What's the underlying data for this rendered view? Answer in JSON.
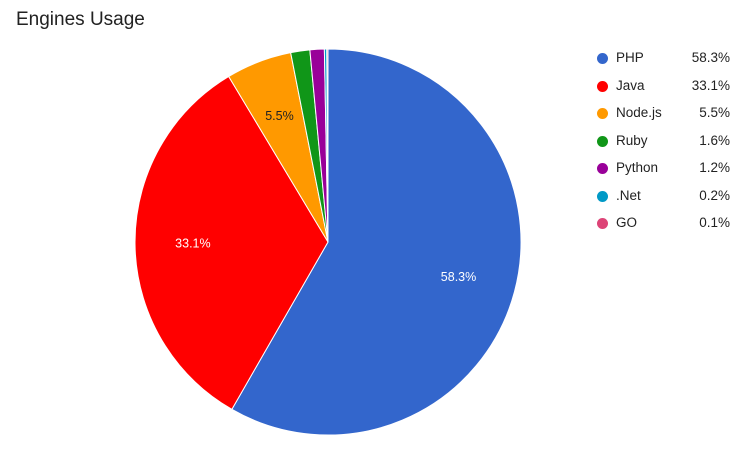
{
  "chart_data": {
    "type": "pie",
    "title": "Engines Usage",
    "legend_position": "right",
    "slices": [
      {
        "name": "PHP",
        "value": 58.3,
        "label": "58.3%",
        "color": "#3366cc",
        "text_color": "#ffffff",
        "show_label": true
      },
      {
        "name": "Java",
        "value": 33.1,
        "label": "33.1%",
        "color": "#ff0000",
        "text_color": "#ffffff",
        "show_label": true
      },
      {
        "name": "Node.js",
        "value": 5.5,
        "label": "5.5%",
        "color": "#ff9900",
        "text_color": "#222222",
        "show_label": true
      },
      {
        "name": "Ruby",
        "value": 1.6,
        "label": "1.6%",
        "color": "#109618",
        "text_color": "#ffffff",
        "show_label": false
      },
      {
        "name": "Python",
        "value": 1.2,
        "label": "1.2%",
        "color": "#990099",
        "text_color": "#ffffff",
        "show_label": false
      },
      {
        "name": ".Net",
        "value": 0.2,
        "label": "0.2%",
        "color": "#0099c6",
        "text_color": "#ffffff",
        "show_label": false
      },
      {
        "name": "GO",
        "value": 0.1,
        "label": "0.1%",
        "color": "#dd4477",
        "text_color": "#ffffff",
        "show_label": false
      }
    ]
  }
}
